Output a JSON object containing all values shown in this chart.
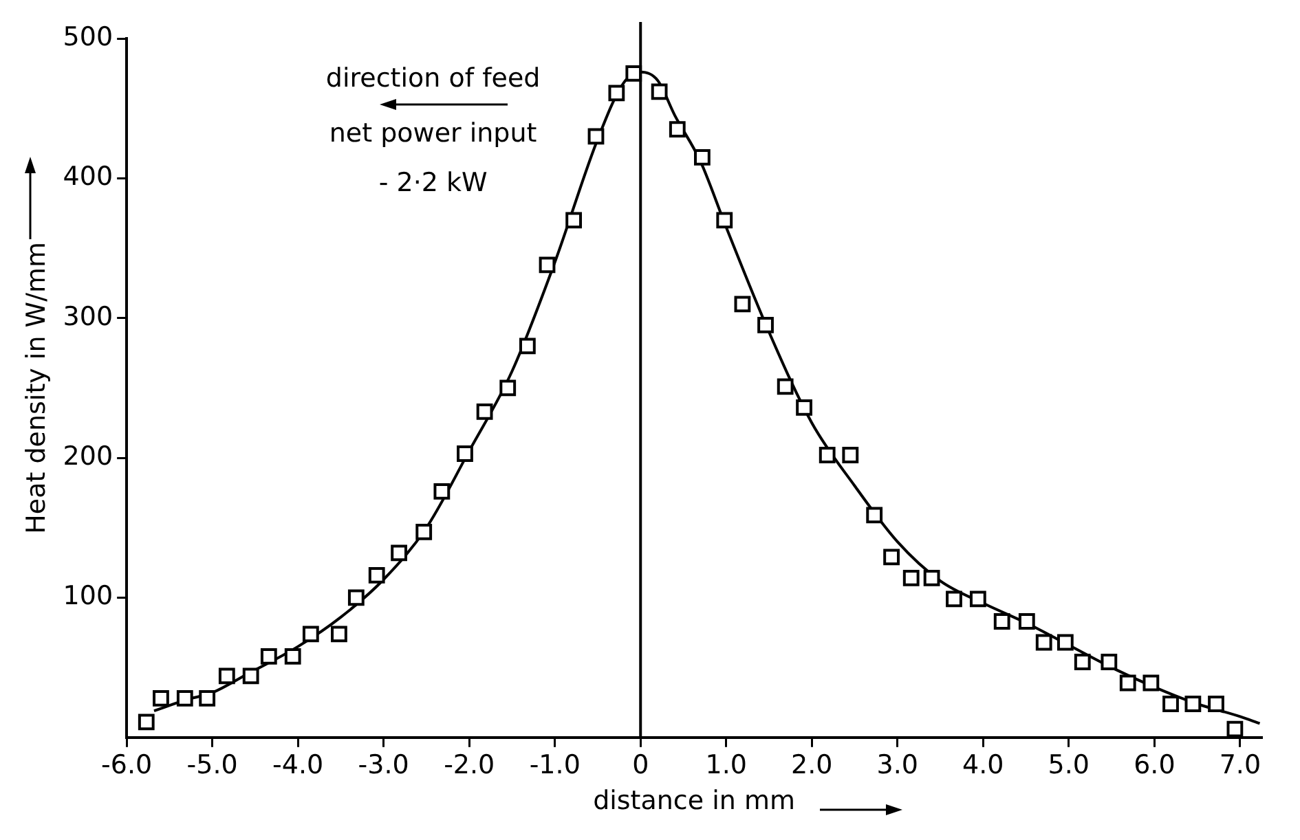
{
  "chart_data": {
    "type": "scatter",
    "xlabel": "distance in mm",
    "ylabel": "Heat density in W/mm",
    "annotations": [
      "direction of feed",
      "net power input",
      "- 2·2 kW"
    ],
    "xlim": [
      -6,
      7.25
    ],
    "ylim": [
      0,
      500
    ],
    "xticks": [
      {
        "value": -6,
        "label": "-6.0"
      },
      {
        "value": -5,
        "label": "-5.0"
      },
      {
        "value": -4,
        "label": "-4.0"
      },
      {
        "value": -3,
        "label": "-3.0"
      },
      {
        "value": -2,
        "label": "-2.0"
      },
      {
        "value": -1,
        "label": "-1.0"
      },
      0,
      {
        "value": 1,
        "label": "1.0"
      },
      {
        "value": 2,
        "label": "2.0"
      },
      {
        "value": 3,
        "label": "3.0"
      },
      {
        "value": 4,
        "label": "4.0"
      },
      {
        "value": 5,
        "label": "5.0"
      },
      {
        "value": 6,
        "label": "6.0"
      },
      {
        "value": 7,
        "label": "7.0"
      }
    ],
    "yticks": [
      100,
      200,
      300,
      400,
      500
    ],
    "grid": false,
    "legend": false,
    "ref_lines": [
      {
        "axis": "x",
        "value": 0,
        "color": "#000000"
      }
    ],
    "series": [
      {
        "type": "scatter",
        "color": "#000000",
        "marker": "square",
        "x": [
          -5.77,
          -5.6,
          -5.32,
          -5.06,
          -4.83,
          -4.55,
          -4.34,
          -4.06,
          -3.85,
          -3.52,
          -3.32,
          -3.08,
          -2.82,
          -2.53,
          -2.32,
          -2.05,
          -1.82,
          -1.55,
          -1.32,
          -1.09,
          -0.78,
          -0.52,
          -0.28,
          -0.08,
          0.22,
          0.43,
          0.72,
          0.98,
          1.19,
          1.46,
          1.69,
          1.91,
          2.18,
          2.45,
          2.73,
          2.93,
          3.16,
          3.4,
          3.66,
          3.94,
          4.22,
          4.51,
          4.71,
          4.96,
          5.16,
          5.47,
          5.69,
          5.96,
          6.19,
          6.45,
          6.72,
          6.94
        ],
        "values": [
          11,
          28,
          28,
          28,
          44,
          44,
          58,
          58,
          74,
          74,
          100,
          116,
          132,
          147,
          176,
          203,
          233,
          250,
          280,
          338,
          370,
          430,
          461,
          475,
          462,
          435,
          415,
          370,
          310,
          295,
          251,
          236,
          202,
          202,
          159,
          129,
          114,
          114,
          99,
          99,
          83,
          83,
          68,
          68,
          54,
          54,
          39,
          39,
          24,
          24,
          24,
          6
        ]
      },
      {
        "type": "line",
        "color": "#000000",
        "marker": "none",
        "line_style": "solid",
        "x": [
          -5.68,
          -5.3,
          -5.0,
          -4.6,
          -4.0,
          -3.5,
          -3.0,
          -2.5,
          -2.0,
          -1.5,
          -1.0,
          -0.5,
          -0.2,
          0,
          0.2,
          0.4,
          0.7,
          1.0,
          1.5,
          2.0,
          2.5,
          3.0,
          3.5,
          4.0,
          4.5,
          5.0,
          5.5,
          6.0,
          6.5,
          7.0,
          7.23
        ],
        "values": [
          19,
          27,
          32,
          45,
          65,
          86,
          113,
          150,
          205,
          262,
          340,
          428,
          468,
          476,
          470,
          445,
          412,
          365,
          290,
          225,
          180,
          140,
          112,
          96,
          82,
          66,
          50,
          36,
          24,
          15,
          10
        ]
      }
    ]
  }
}
